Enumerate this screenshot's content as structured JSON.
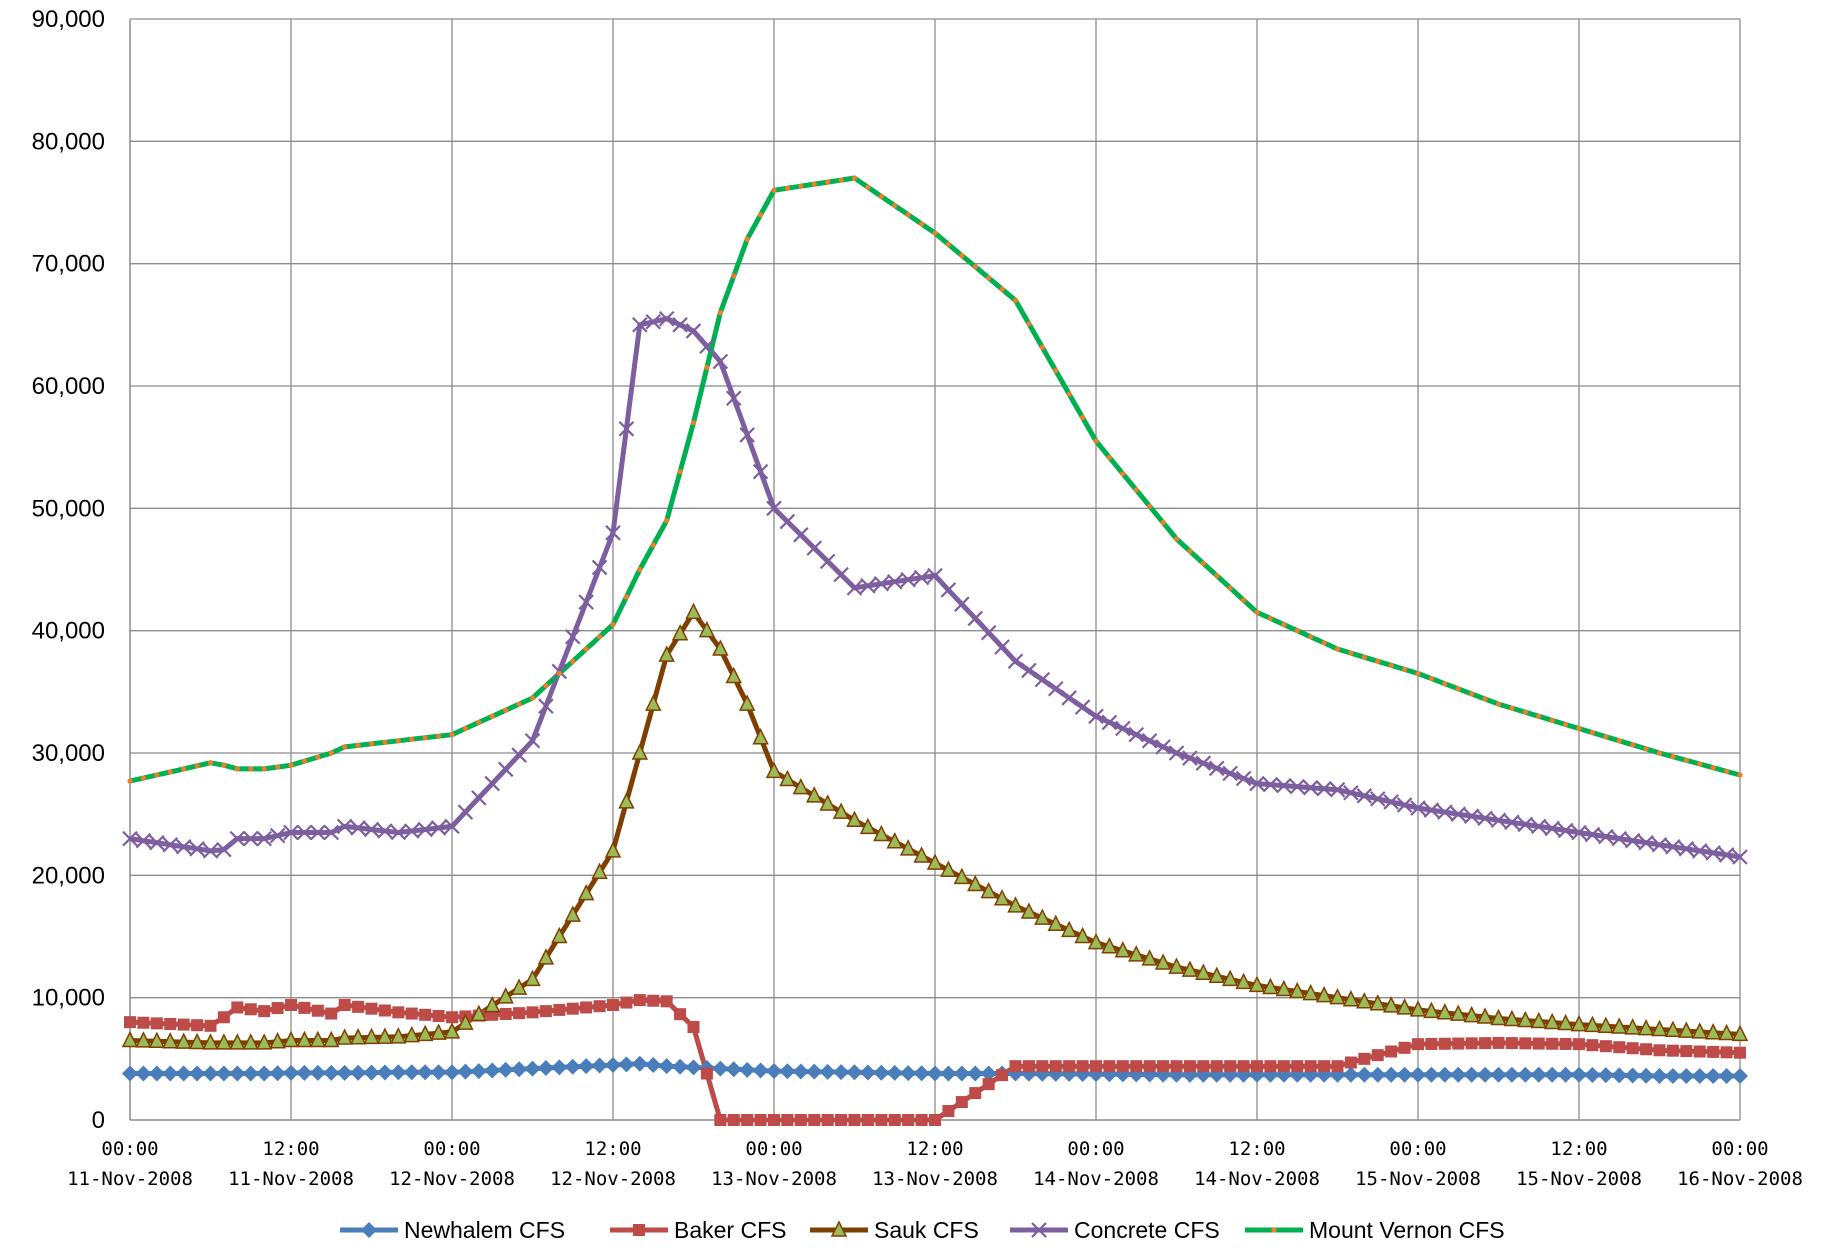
{
  "chart_data": {
    "type": "line",
    "title": "",
    "xlabel": "",
    "ylabel": "",
    "ylim": [
      0,
      90000
    ],
    "y_ticks": [
      "0",
      "10,000",
      "20,000",
      "30,000",
      "40,000",
      "50,000",
      "60,000",
      "70,000",
      "80,000",
      "90,000"
    ],
    "x_range": [
      "2008-11-11T00:00",
      "2008-11-16T00:00"
    ],
    "x_ticks": [
      {
        "time": "00:00",
        "date": "11-Nov-2008"
      },
      {
        "time": "12:00",
        "date": "11-Nov-2008"
      },
      {
        "time": "00:00",
        "date": "12-Nov-2008"
      },
      {
        "time": "12:00",
        "date": "12-Nov-2008"
      },
      {
        "time": "00:00",
        "date": "13-Nov-2008"
      },
      {
        "time": "12:00",
        "date": "13-Nov-2008"
      },
      {
        "time": "00:00",
        "date": "14-Nov-2008"
      },
      {
        "time": "12:00",
        "date": "14-Nov-2008"
      },
      {
        "time": "00:00",
        "date": "15-Nov-2008"
      },
      {
        "time": "12:00",
        "date": "15-Nov-2008"
      },
      {
        "time": "00:00",
        "date": "16-Nov-2008"
      }
    ],
    "grid": true,
    "legend_position": "bottom",
    "sample_interval_hours": 1,
    "series_key_hours": [
      0,
      6,
      7,
      8,
      10,
      12,
      15,
      16,
      20,
      24,
      30,
      36,
      38,
      40,
      42,
      44,
      46,
      48,
      54,
      60,
      66,
      72,
      78,
      84,
      90,
      96,
      102,
      108,
      114,
      120
    ],
    "series": [
      {
        "name": "Newhalem CFS",
        "color": "#4a7ebb",
        "marker": "diamond",
        "values": [
          3800,
          3800,
          3800,
          3800,
          3800,
          3850,
          3850,
          3850,
          3900,
          3900,
          4200,
          4500,
          4600,
          4400,
          4300,
          4200,
          4100,
          4000,
          3900,
          3800,
          3800,
          3750,
          3700,
          3700,
          3700,
          3700,
          3700,
          3700,
          3600,
          3600
        ]
      },
      {
        "name": "Baker CFS",
        "color": "#be4b48",
        "marker": "square",
        "values": [
          8000,
          7700,
          8400,
          9200,
          8900,
          9400,
          8700,
          9400,
          8800,
          8400,
          8800,
          9400,
          9800,
          9700,
          7600,
          0,
          0,
          0,
          0,
          0,
          4400,
          4400,
          4400,
          4400,
          4400,
          6200,
          6300,
          6200,
          5700,
          5500
        ]
      },
      {
        "name": "Sauk CFS",
        "color": "#7f3f00",
        "marker": "triangle",
        "values": [
          6500,
          6300,
          6300,
          6300,
          6300,
          6500,
          6500,
          6700,
          6800,
          7200,
          11500,
          22000,
          30000,
          38000,
          41500,
          38500,
          34000,
          28500,
          24500,
          21000,
          17500,
          14500,
          12500,
          11000,
          10000,
          9000,
          8300,
          7800,
          7400,
          7000
        ]
      },
      {
        "name": "Concrete CFS",
        "color": "#7d5fa0",
        "marker": "x",
        "values": [
          23000,
          22000,
          22100,
          23000,
          23000,
          23500,
          23500,
          24000,
          23500,
          24000,
          31000,
          48000,
          65000,
          65500,
          64500,
          62000,
          56000,
          50000,
          43500,
          44500,
          37500,
          33000,
          30000,
          27500,
          27000,
          25500,
          24500,
          23500,
          22500,
          21500
        ]
      },
      {
        "name": "Mount Vernon CFS",
        "color": "#00b050",
        "marker": "dot",
        "marker_color": "#f07d28",
        "values": [
          27700,
          29200,
          29000,
          28700,
          28700,
          29000,
          30000,
          30500,
          31000,
          31500,
          34500,
          40500,
          45000,
          49000,
          57000,
          66000,
          72000,
          76000,
          77000,
          72500,
          67000,
          55500,
          47500,
          41500,
          38500,
          36500,
          34000,
          32000,
          30000,
          28200
        ]
      }
    ]
  }
}
